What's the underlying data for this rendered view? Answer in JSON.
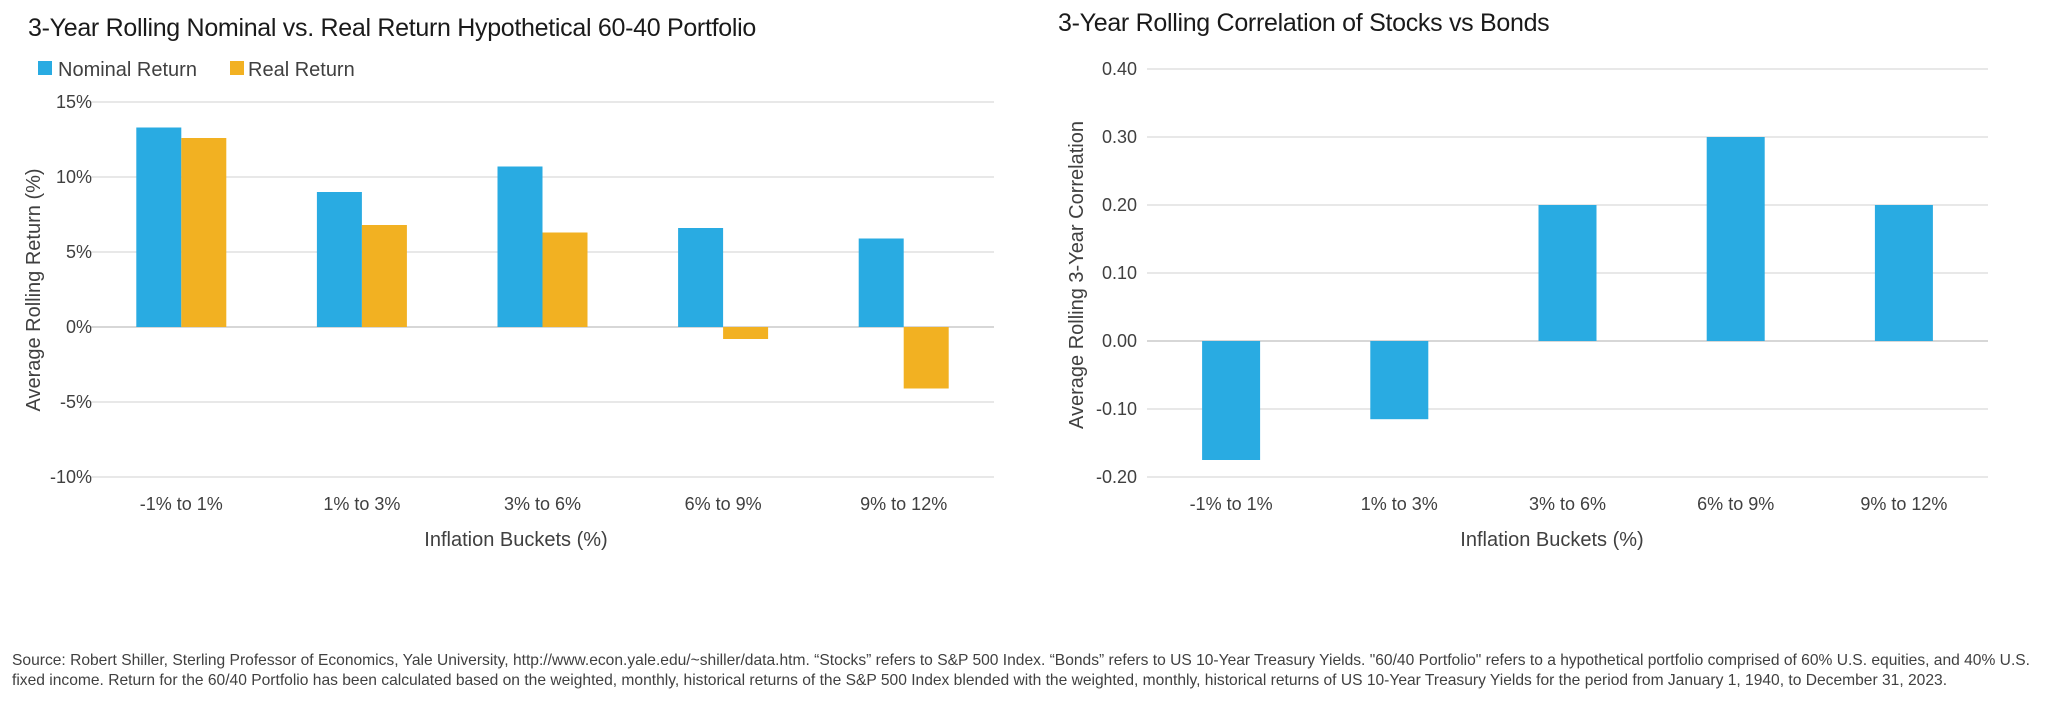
{
  "colors": {
    "nominal": "#29ABE2",
    "real": "#F2B122",
    "correlation": "#29ABE2"
  },
  "chart_data": [
    {
      "type": "bar",
      "title": "3-Year Rolling Nominal vs. Real Return Hypothetical 60-40 Portfolio",
      "xlabel": "Inflation Buckets (%)",
      "ylabel": "Average Rolling Return (%)",
      "ylim": [
        -10,
        15
      ],
      "yticks": [
        15,
        10,
        5,
        0,
        -5,
        -10
      ],
      "ytick_labels": [
        "15%",
        "10%",
        "5%",
        "0%",
        "-5%",
        "-10%"
      ],
      "grid": true,
      "legend_position": "top-left",
      "categories": [
        "-1% to 1%",
        "1% to 3%",
        "3% to 6%",
        "6% to 9%",
        "9% to 12%"
      ],
      "series": [
        {
          "name": "Nominal Return",
          "values": [
            13.3,
            9.0,
            10.7,
            6.6,
            5.9
          ]
        },
        {
          "name": "Real Return",
          "values": [
            12.6,
            6.8,
            6.3,
            -0.8,
            -4.1
          ]
        }
      ]
    },
    {
      "type": "bar",
      "title": "3-Year Rolling Correlation of Stocks vs Bonds",
      "xlabel": "Inflation Buckets (%)",
      "ylabel": "Average Rolling 3-Year Correlation",
      "ylim": [
        -0.2,
        0.4
      ],
      "yticks": [
        0.4,
        0.3,
        0.2,
        0.1,
        0.0,
        -0.1,
        -0.2
      ],
      "ytick_labels": [
        "0.40",
        "0.30",
        "0.20",
        "0.10",
        "0.00",
        "-0.10",
        "-0.20"
      ],
      "grid": true,
      "categories": [
        "-1% to 1%",
        "1% to 3%",
        "3% to 6%",
        "6% to 9%",
        "9% to 12%"
      ],
      "series": [
        {
          "name": "Correlation",
          "values": [
            -0.175,
            -0.115,
            0.2,
            0.3,
            0.2
          ]
        }
      ]
    }
  ],
  "source_note": "Source: Robert Shiller, Sterling Professor of Economics, Yale University, http://www.econ.yale.edu/~shiller/data.htm. “Stocks” refers to S&P 500 Index. “Bonds” refers to US 10-Year Treasury Yields. \"60/40 Portfolio\" refers to a hypothetical portfolio comprised of 60% U.S. equities, and 40% U.S. fixed income. Return for the 60/40 Portfolio has been calculated based on the weighted, monthly, historical returns of the S&P 500 Index blended with the weighted, monthly, historical returns of US 10-Year Treasury Yields for the period from January 1, 1940, to December 31, 2023."
}
